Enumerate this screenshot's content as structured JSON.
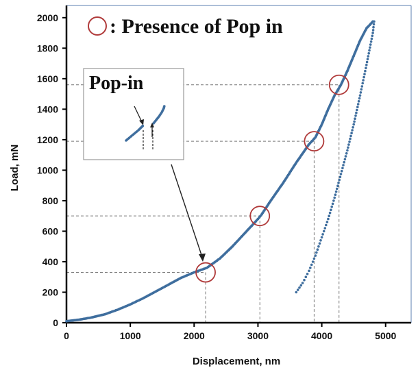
{
  "chart_data": {
    "type": "scatter",
    "xlabel": "Displacement, nm",
    "ylabel": "Load, mN",
    "xlim": [
      0,
      5400
    ],
    "ylim": [
      0,
      2080
    ],
    "xticks": [
      0,
      1000,
      2000,
      3000,
      4000,
      5000
    ],
    "yticks": [
      0,
      200,
      400,
      600,
      800,
      1000,
      1200,
      1400,
      1600,
      1800,
      2000
    ],
    "grid": false,
    "marker_color": "#3f6e9e",
    "loading": {
      "x": [
        0,
        200,
        400,
        600,
        800,
        1000,
        1200,
        1400,
        1600,
        1800,
        2000,
        2200,
        2400,
        2600,
        2800,
        3000,
        3050,
        3200,
        3400,
        3600,
        3800,
        3900,
        4000,
        4100,
        4200,
        4300,
        4400,
        4500,
        4600,
        4700,
        4800
      ],
      "y": [
        10,
        20,
        35,
        55,
        85,
        120,
        160,
        205,
        250,
        295,
        330,
        360,
        420,
        500,
        590,
        680,
        705,
        800,
        920,
        1050,
        1170,
        1215,
        1300,
        1400,
        1490,
        1560,
        1650,
        1750,
        1850,
        1930,
        1975
      ]
    },
    "unloading": {
      "x": [
        4820,
        4800,
        4700,
        4600,
        4500,
        4400,
        4300,
        4200,
        4100,
        4000,
        3900,
        3800,
        3700,
        3600
      ],
      "y": [
        1975,
        1900,
        1690,
        1490,
        1300,
        1130,
        975,
        820,
        680,
        560,
        440,
        340,
        260,
        200
      ]
    },
    "legend": {
      "marker": "circle",
      "text": ": Presence of Pop in",
      "marker_color": "#b03a3a"
    },
    "pop_in_points": [
      {
        "x": 2180,
        "y": 330
      },
      {
        "x": 3030,
        "y": 700
      },
      {
        "x": 3880,
        "y": 1190
      },
      {
        "x": 4270,
        "y": 1560
      }
    ],
    "inset": {
      "title": "Pop-in"
    }
  }
}
